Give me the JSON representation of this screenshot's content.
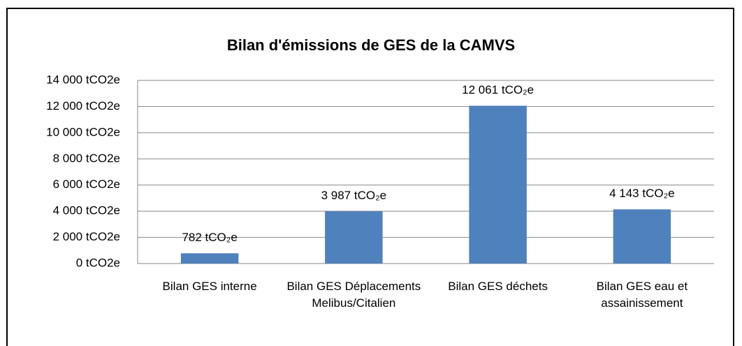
{
  "chart_data": {
    "type": "bar",
    "title": "Bilan d'émissions de GES de la CAMVS",
    "categories": [
      "Bilan GES interne",
      "Bilan GES Déplacements Melibus/Citalien",
      "Bilan GES déchets",
      "Bilan GES eau et assainissement"
    ],
    "values": [
      782,
      3987,
      12061,
      4143
    ],
    "value_labels": [
      "782 tCO₂e",
      "3 987 tCO₂e",
      "12 061 tCO₂e",
      "4 143 tCO₂e"
    ],
    "color": "#4f81bd",
    "ylim": [
      0,
      14000
    ],
    "yticks": [
      {
        "value": 0,
        "label": "0 tCO2e"
      },
      {
        "value": 2000,
        "label": "2 000 tCO2e"
      },
      {
        "value": 4000,
        "label": "4 000 tCO2e"
      },
      {
        "value": 6000,
        "label": "6 000 tCO2e"
      },
      {
        "value": 8000,
        "label": "8 000 tCO2e"
      },
      {
        "value": 10000,
        "label": "10 000 tCO2e"
      },
      {
        "value": 12000,
        "label": "12 000 tCO2e"
      },
      {
        "value": 14000,
        "label": "14 000 tCO2e"
      }
    ],
    "grid": true
  }
}
